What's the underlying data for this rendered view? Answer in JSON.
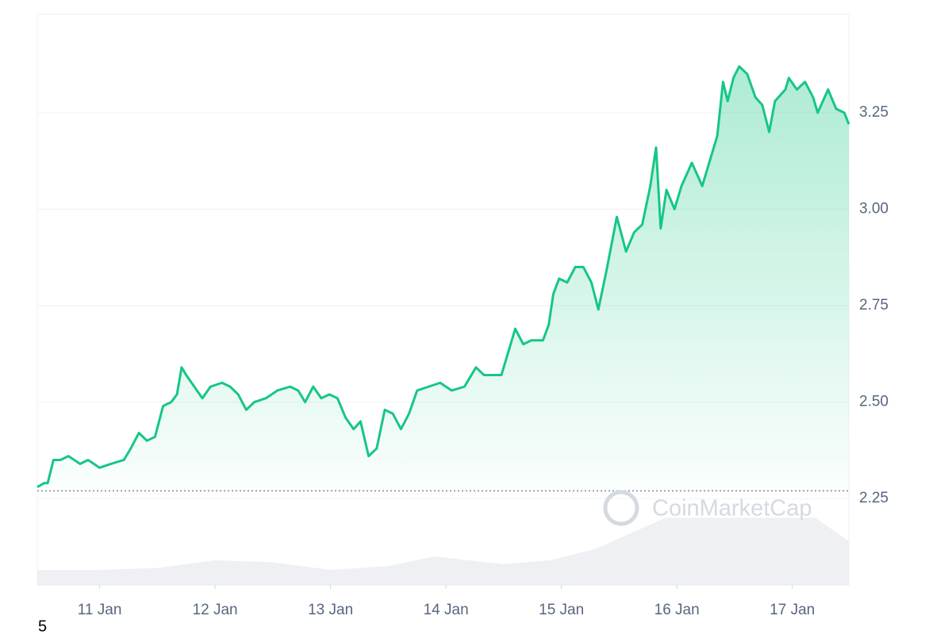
{
  "chart_data": {
    "type": "area-line",
    "x": [
      10.46,
      10.52,
      10.55,
      10.6,
      10.66,
      10.73,
      10.83,
      10.9,
      11.0,
      11.1,
      11.21,
      11.27,
      11.34,
      11.41,
      11.48,
      11.55,
      11.62,
      11.67,
      11.71,
      11.75,
      11.82,
      11.89,
      11.96,
      12.06,
      12.13,
      12.2,
      12.27,
      12.34,
      12.44,
      12.54,
      12.65,
      12.72,
      12.78,
      12.85,
      12.92,
      12.99,
      13.06,
      13.13,
      13.2,
      13.26,
      13.33,
      13.4,
      13.47,
      13.54,
      13.61,
      13.68,
      13.75,
      13.85,
      13.95,
      14.05,
      14.16,
      14.26,
      14.33,
      14.4,
      14.48,
      14.55,
      14.6,
      14.67,
      14.74,
      14.84,
      14.89,
      14.93,
      14.98,
      15.05,
      15.12,
      15.19,
      15.26,
      15.32,
      15.39,
      15.48,
      15.56,
      15.63,
      15.7,
      15.77,
      15.82,
      15.86,
      15.91,
      15.98,
      16.04,
      16.13,
      16.22,
      16.28,
      16.35,
      16.4,
      16.44,
      16.49,
      16.54,
      16.61,
      16.68,
      16.74,
      16.8,
      16.85,
      16.94,
      16.97,
      17.04,
      17.11,
      17.18,
      17.22,
      17.31,
      17.38,
      17.45,
      17.49
    ],
    "series": [
      {
        "color": "#16c784",
        "values": [
          2.28,
          2.29,
          2.29,
          2.35,
          2.35,
          2.36,
          2.34,
          2.35,
          2.33,
          2.34,
          2.35,
          2.38,
          2.42,
          2.4,
          2.41,
          2.49,
          2.5,
          2.52,
          2.59,
          2.57,
          2.54,
          2.51,
          2.54,
          2.55,
          2.54,
          2.52,
          2.48,
          2.5,
          2.51,
          2.53,
          2.54,
          2.53,
          2.5,
          2.54,
          2.51,
          2.52,
          2.51,
          2.46,
          2.43,
          2.45,
          2.36,
          2.38,
          2.48,
          2.47,
          2.43,
          2.47,
          2.53,
          2.54,
          2.55,
          2.53,
          2.54,
          2.59,
          2.57,
          2.57,
          2.57,
          2.64,
          2.69,
          2.65,
          2.66,
          2.66,
          2.7,
          2.78,
          2.82,
          2.81,
          2.85,
          2.85,
          2.81,
          2.74,
          2.84,
          2.98,
          2.89,
          2.94,
          2.96,
          3.06,
          3.16,
          2.95,
          3.05,
          3.0,
          3.06,
          3.12,
          3.06,
          3.12,
          3.19,
          3.33,
          3.28,
          3.34,
          3.37,
          3.35,
          3.29,
          3.27,
          3.2,
          3.28,
          3.31,
          3.34,
          3.31,
          3.33,
          3.29,
          3.25,
          3.31,
          3.26,
          3.25,
          3.22
        ]
      }
    ],
    "baseline": 2.27,
    "volume": {
      "color": "#eef0f3",
      "x": [
        10.46,
        11.0,
        11.5,
        12.0,
        12.5,
        13.0,
        13.5,
        13.9,
        14.5,
        14.9,
        15.3,
        15.6,
        15.9,
        16.5,
        17.2,
        17.49
      ],
      "values": [
        2.065,
        2.065,
        2.07,
        2.09,
        2.085,
        2.065,
        2.075,
        2.1,
        2.08,
        2.09,
        2.12,
        2.16,
        2.2,
        2.2,
        2.2,
        2.14
      ]
    },
    "xlim": [
      10.46,
      17.49
    ],
    "xticks": [
      {
        "value": 11,
        "label": "11 Jan"
      },
      {
        "value": 12,
        "label": "12 Jan"
      },
      {
        "value": 13,
        "label": "13 Jan"
      },
      {
        "value": 14,
        "label": "14 Jan"
      },
      {
        "value": 15,
        "label": "15 Jan"
      },
      {
        "value": 16,
        "label": "16 Jan"
      },
      {
        "value": 17,
        "label": "17 Jan"
      }
    ],
    "ylim": [
      2.026,
      3.505
    ],
    "yticks": [
      2.25,
      {
        "value": 2.5,
        "label": "2.50"
      },
      2.75,
      {
        "value": 3,
        "label": "3.00"
      },
      3.25
    ],
    "grid": true,
    "watermark": "CoinMarketCap",
    "footnote": "5"
  }
}
